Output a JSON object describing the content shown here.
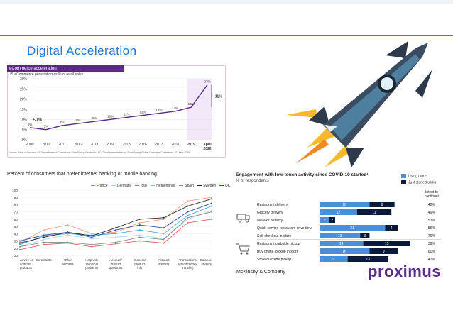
{
  "slide": {
    "title": "Digital  Acceleration",
    "brand_color": "#1f7ad8",
    "logo_text": "proximus",
    "logo_color": "#5b2d8e"
  },
  "rocket": {
    "icon": "rocket-illustration"
  },
  "chart_data": [
    {
      "type": "line",
      "title": "eCommerce acceleration",
      "subtitle": "US eCommerce penetration as % of retail sales",
      "source": "Source: Bank of America; US Department of Commerce; ShawSpring Research LLC; Chart presentation by ShawSpring Global Coverage Conference, 11 June 2020",
      "x": [
        "2009",
        "2010",
        "2011",
        "2012",
        "2013",
        "2014",
        "2015",
        "2016",
        "2017",
        "2018",
        "2019",
        "April 2020"
      ],
      "values": [
        6,
        5,
        7,
        8,
        9,
        10,
        11,
        12,
        13,
        14,
        16,
        27
      ],
      "value_labels": [
        "6%",
        "5%",
        "7%",
        "8%",
        "9%",
        "10%",
        "11%",
        "12%",
        "13%",
        "14%",
        "16%",
        "27%"
      ],
      "yticks": [
        "0%",
        "5%",
        "10%",
        "15%",
        "20%",
        "25%",
        "30%"
      ],
      "ylim": [
        0,
        30
      ],
      "annotations": [
        "+10%",
        "+11%"
      ],
      "line_color": "#5a2a82"
    },
    {
      "type": "line",
      "title": "Percent of consumers that prefer internet banking or mobile banking",
      "categories": [
        "Advice on complex products",
        "Complaints",
        "Other services",
        "Help with technical problems",
        "Account/ product questions",
        "General product info",
        "Account opening",
        "Transactions (credit/money transfer)",
        "Balance enquiry"
      ],
      "yticks": [
        "10",
        "20",
        "30",
        "40",
        "50",
        "60",
        "70",
        "80",
        "90",
        "100"
      ],
      "ylim": [
        10,
        100
      ],
      "legend_position": "top-right",
      "series": [
        {
          "name": "France",
          "color": "#4aa3df",
          "values": [
            25,
            37,
            40,
            38,
            40,
            45,
            40,
            65,
            78
          ]
        },
        {
          "name": "Germany",
          "color": "#a8d8ee",
          "values": [
            22,
            32,
            38,
            33,
            35,
            38,
            33,
            60,
            72
          ]
        },
        {
          "name": "Italy",
          "color": "#e06060",
          "values": [
            18,
            25,
            27,
            22,
            26,
            30,
            27,
            55,
            60
          ]
        },
        {
          "name": "Netherlands",
          "color": "#f0a080",
          "values": [
            28,
            45,
            52,
            40,
            42,
            55,
            60,
            85,
            90
          ]
        },
        {
          "name": "Spain",
          "color": "#888888",
          "values": [
            22,
            28,
            28,
            25,
            28,
            35,
            32,
            62,
            70
          ]
        },
        {
          "name": "Sweden",
          "color": "#222222",
          "values": [
            27,
            35,
            42,
            37,
            48,
            60,
            62,
            78,
            88
          ]
        },
        {
          "name": "UK",
          "color": "#2b4fa0",
          "values": [
            30,
            38,
            42,
            35,
            45,
            52,
            48,
            70,
            82
          ]
        }
      ]
    },
    {
      "type": "bar",
      "title": "Engagement with low-touch activity since COVID-19 started¹",
      "subtitle": "% of respondents",
      "intent_header": "Intent to continue²",
      "footer": "McKinsey & Company",
      "legend_position": "top-right",
      "categories": [
        "Restaurant delivery",
        "Grocery delivery",
        "Meal-kit delivery",
        "Quick-service restaurant drive-thru",
        "Self-checkout in store",
        "Restaurant curbside pickup",
        "Buy online, pickup in store",
        "Store curbside pickup"
      ],
      "series": [
        {
          "name": "Using more",
          "color": "#4a90d9",
          "values": [
            16,
            12,
            3,
            21,
            13,
            14,
            16,
            9
          ]
        },
        {
          "name": "Just started using",
          "color": "#0b1a3a",
          "values": [
            8,
            11,
            2,
            4,
            3,
            15,
            9,
            13
          ]
        }
      ],
      "intent": [
        "42%",
        "49%",
        "53%",
        "56%",
        "79%",
        "39%",
        "60%",
        "47%"
      ]
    }
  ]
}
